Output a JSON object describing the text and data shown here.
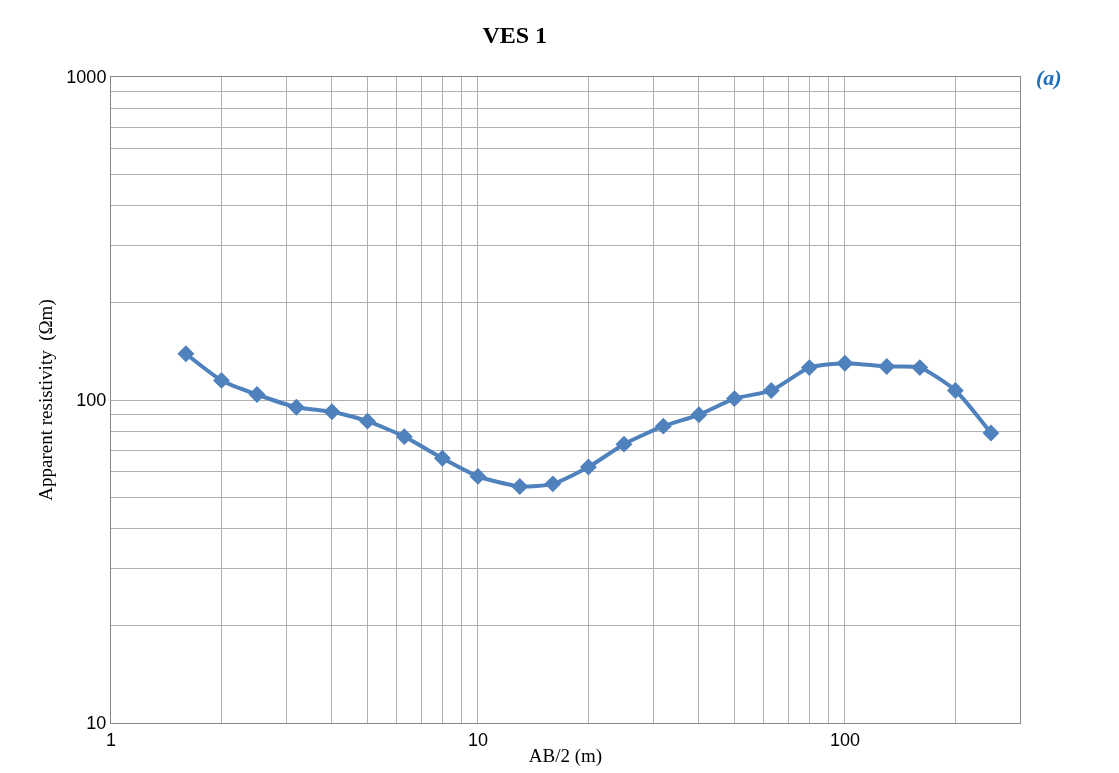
{
  "chart_data": {
    "type": "line",
    "title": "VES 1",
    "xlabel": "AB/2 (m)",
    "ylabel": "Apparent resistivity  (Ωm)",
    "annotations": [
      "(a)"
    ],
    "log": "xy",
    "grid": true,
    "marker": "diamond",
    "line_style": "solid",
    "xlim": [
      1,
      300
    ],
    "ylim": [
      10,
      1000
    ],
    "xticks": [
      1,
      {
        "value": 2,
        "label": null
      },
      {
        "value": 3,
        "label": null
      },
      {
        "value": 4,
        "label": null
      },
      {
        "value": 5,
        "label": null
      },
      {
        "value": 6,
        "label": null
      },
      {
        "value": 7,
        "label": null
      },
      {
        "value": 8,
        "label": null
      },
      {
        "value": 9,
        "label": null
      },
      10,
      {
        "value": 20,
        "label": null
      },
      {
        "value": 30,
        "label": null
      },
      {
        "value": 40,
        "label": null
      },
      {
        "value": 50,
        "label": null
      },
      {
        "value": 60,
        "label": null
      },
      {
        "value": 70,
        "label": null
      },
      {
        "value": 80,
        "label": null
      },
      {
        "value": 90,
        "label": null
      },
      100,
      {
        "value": 200,
        "label": null
      },
      {
        "value": 300,
        "label": null
      }
    ],
    "yticks": [
      10,
      {
        "value": 20,
        "label": null
      },
      {
        "value": 30,
        "label": null
      },
      {
        "value": 40,
        "label": null
      },
      {
        "value": 50,
        "label": null
      },
      {
        "value": 60,
        "label": null
      },
      {
        "value": 70,
        "label": null
      },
      {
        "value": 80,
        "label": null
      },
      {
        "value": 90,
        "label": null
      },
      100,
      {
        "value": 200,
        "label": null
      },
      {
        "value": 300,
        "label": null
      },
      {
        "value": 400,
        "label": null
      },
      {
        "value": 500,
        "label": null
      },
      {
        "value": 600,
        "label": null
      },
      {
        "value": 700,
        "label": null
      },
      {
        "value": 800,
        "label": null
      },
      {
        "value": 900,
        "label": null
      },
      1000
    ],
    "x": [
      1.6,
      2,
      2.5,
      3.2,
      4,
      5,
      6.3,
      8,
      10,
      13,
      16,
      20,
      25,
      32,
      40,
      50,
      63,
      80,
      100,
      130,
      160,
      200,
      250
    ],
    "series": [
      {
        "color": "#4f81bd",
        "values": [
          139,
          115,
          104,
          95,
          92,
          86,
          77,
          66,
          58,
          54,
          55,
          62,
          73,
          83,
          90,
          101,
          107,
          126,
          130,
          127,
          126,
          107,
          79
        ]
      }
    ]
  }
}
